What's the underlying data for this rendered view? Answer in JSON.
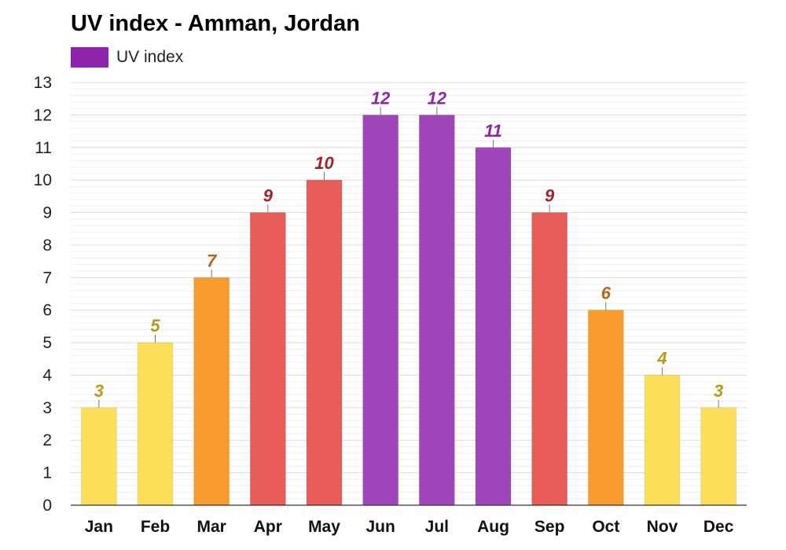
{
  "chart_data": {
    "type": "bar",
    "title": "UV index - Amman, Jordan",
    "categories": [
      "Jan",
      "Feb",
      "Mar",
      "Apr",
      "May",
      "Jun",
      "Jul",
      "Aug",
      "Sep",
      "Oct",
      "Nov",
      "Dec"
    ],
    "series": [
      {
        "name": "UV index",
        "values": [
          3,
          5,
          7,
          9,
          10,
          12,
          12,
          11,
          9,
          6,
          4,
          3
        ]
      }
    ],
    "ylim": [
      0,
      13
    ],
    "yticks": [
      "0",
      "1",
      "2",
      "3",
      "4",
      "5",
      "6",
      "7",
      "8",
      "9",
      "10",
      "11",
      "12",
      "13"
    ],
    "xlabel": "",
    "ylabel": "",
    "grid": true,
    "legend_position": "top-left",
    "legend_color": "#8e24aa",
    "bar_colors": [
      "#fbdf5a",
      "#fbdf5a",
      "#f99c2f",
      "#e85d57",
      "#e85d57",
      "#a046ba",
      "#a046ba",
      "#a046ba",
      "#e85d57",
      "#f99c2f",
      "#fbdf5a",
      "#fbdf5a"
    ],
    "label_colors": [
      "#b89a1c",
      "#b89a1c",
      "#b8651a",
      "#a1232a",
      "#a1232a",
      "#8e24aa",
      "#8e24aa",
      "#8e24aa",
      "#a1232a",
      "#b8651a",
      "#b89a1c",
      "#b89a1c"
    ]
  }
}
